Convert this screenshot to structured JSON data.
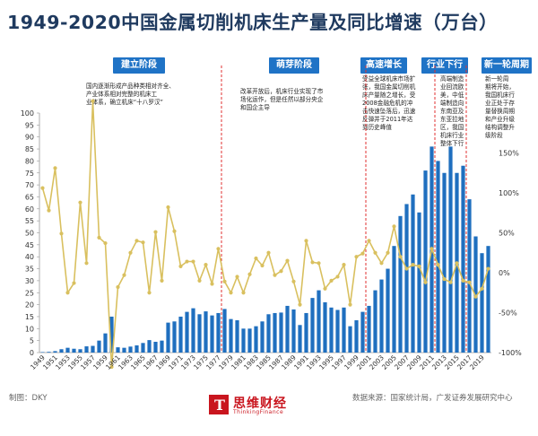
{
  "title": "1949-2020中国金属切削机床生产量及同比增速（万台）",
  "phases": [
    {
      "label": "建立阶段",
      "note_lines": [
        "国内逐渐形成产品种类相对齐全、",
        "产业体系相对完整的机床工",
        "业体系，确立机床“十八罗汉”"
      ]
    },
    {
      "label": "萌芽阶段",
      "note_lines": [
        "改革开放后，机床行业实现了市",
        "场化运作，但是任然以部分央企",
        "和国企主导"
      ]
    },
    {
      "label": "高速增长",
      "note_lines": [
        "受益全球机床市场扩",
        "张，我国金属切削机",
        "床产量随之增长，受",
        "2008金融危机的冲",
        "击快速坠落后，迅速",
        "反弹并于2011年达",
        "到历史峰值"
      ]
    },
    {
      "label": "行业下行",
      "note_lines": [
        "高端制造",
        "业回流欧",
        "美，中低",
        "端制造向",
        "东南亚及",
        "东亚拉地",
        "区，我国",
        "机床行业",
        "整体下行"
      ]
    },
    {
      "label": "新一轮周期",
      "note_lines": [
        "新一轮周",
        "期将开始，",
        "我国机床行",
        "业正处于存",
        "量替换周期",
        "和产业升级",
        "结构调整升",
        "级阶段"
      ]
    }
  ],
  "footer": {
    "maker": "制图：DKY",
    "logo_cn": "思维财经",
    "logo_en": "ThinkingFinance",
    "source": "数据来源：国家统计局，广发证券发展研究中心"
  },
  "colors": {
    "bar": "#1f6fbf",
    "line": "#d9c05f",
    "phase": "#1f73c6",
    "divider": "#e03030",
    "title": "#1f3a5f"
  },
  "chart_data": {
    "type": "bar",
    "x": [
      1949,
      1950,
      1951,
      1952,
      1953,
      1954,
      1955,
      1956,
      1957,
      1958,
      1959,
      1960,
      1961,
      1962,
      1963,
      1964,
      1965,
      1966,
      1967,
      1968,
      1969,
      1970,
      1971,
      1972,
      1973,
      1974,
      1975,
      1976,
      1977,
      1978,
      1979,
      1980,
      1981,
      1982,
      1983,
      1984,
      1985,
      1986,
      1987,
      1988,
      1989,
      1990,
      1991,
      1992,
      1993,
      1994,
      1995,
      1996,
      1997,
      1998,
      1999,
      2000,
      2001,
      2002,
      2003,
      2004,
      2005,
      2006,
      2007,
      2008,
      2009,
      2010,
      2011,
      2012,
      2013,
      2014,
      2015,
      2016,
      2017,
      2018,
      2019,
      2020
    ],
    "x_tick_labels": [
      "1949",
      "1951",
      "1953",
      "1955",
      "1957",
      "1959",
      "1961",
      "1963",
      "1965",
      "1967",
      "1969",
      "1971",
      "1973",
      "1975",
      "1977",
      "1979",
      "1981",
      "1983",
      "1985",
      "1987",
      "1989",
      "1991",
      "1993",
      "1995",
      "1997",
      "1999",
      "2001",
      "2003",
      "2005",
      "2007",
      "2009",
      "2011",
      "2013",
      "2015",
      "2017",
      "2019"
    ],
    "series": [
      {
        "axis": "left",
        "type": "bar",
        "values": [
          0.2,
          0.3,
          0.6,
          1.4,
          2.0,
          1.6,
          1.4,
          2.6,
          2.8,
          5.0,
          8.0,
          15.0,
          2.2,
          2.0,
          2.5,
          3.0,
          4.0,
          5.2,
          4.5,
          5.0,
          12.5,
          13.0,
          15.0,
          17.0,
          18.5,
          16.0,
          17.2,
          15.5,
          16.5,
          18.2,
          14.0,
          13.5,
          10.0,
          10.0,
          11.0,
          13.0,
          16.0,
          16.5,
          16.7,
          19.5,
          18.0,
          11.5,
          16.5,
          22.8,
          26.0,
          21.0,
          18.8,
          17.8,
          18.8,
          11.0,
          13.5,
          17.0,
          19.5,
          26.0,
          30.5,
          35.0,
          44.5,
          57.0,
          62.0,
          66.0,
          58.5,
          76.0,
          86.0,
          80.0,
          75.0,
          86.0,
          75.0,
          78.0,
          64.0,
          48.5,
          41.5,
          44.5
        ]
      },
      {
        "axis": "right",
        "type": "line",
        "values": [
          106,
          78,
          131,
          49,
          -25,
          -13,
          88,
          12,
          215,
          44,
          37,
          -118,
          -18,
          -3,
          25,
          40,
          38,
          -25,
          51,
          -10,
          82,
          52,
          8,
          14,
          14,
          -10,
          10,
          -14,
          30,
          -11,
          -25,
          -5,
          -25,
          -2,
          18,
          9,
          25,
          -3,
          2,
          15,
          -11,
          -40,
          40,
          13,
          12,
          -20,
          -10,
          -5,
          10,
          -40,
          20,
          24,
          40,
          25,
          12,
          25,
          58,
          20,
          5,
          10,
          8,
          -12,
          30,
          10,
          -8,
          -12,
          12,
          -10,
          -12,
          -30,
          -20,
          5
        ]
      }
    ],
    "ylim_left": [
      0,
      100
    ],
    "yticks_left": [
      0,
      5,
      10,
      15,
      20,
      25,
      30,
      35,
      40,
      45,
      50,
      55,
      60,
      65,
      70,
      75,
      80,
      85,
      90,
      95,
      100
    ],
    "ylim_right": [
      -100,
      200
    ],
    "yticks_right": [
      "-100%",
      "-50%",
      "0%",
      "50%",
      "100%",
      "150%"
    ],
    "yticks_right_values": [
      -100,
      -50,
      0,
      50,
      100,
      150
    ],
    "phase_dividers": [
      1977.5,
      2000.5,
      2011.5,
      2016.5
    ],
    "grid": false,
    "legend": "none"
  }
}
